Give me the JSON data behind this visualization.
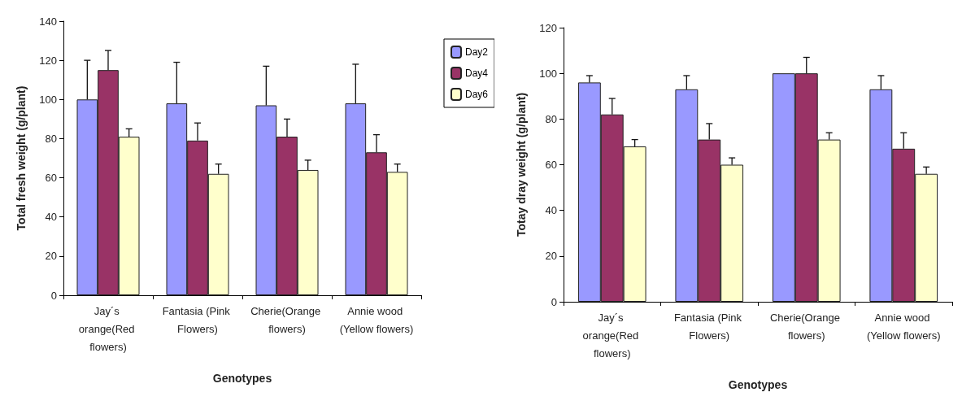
{
  "chart_data": [
    {
      "type": "bar",
      "xlabel": "Genotypes",
      "ylabel": "Total fresh weight (g/plant)",
      "categories": [
        "Jay´s orange(Red flowers)",
        "Fantasia (Pink Flowers)",
        "Cherie(Orange flowers)",
        "Annie wood (Yellow flowers)"
      ],
      "ylim": [
        0,
        140
      ],
      "yticks": [
        0,
        20,
        40,
        60,
        80,
        100,
        120,
        140
      ],
      "grid": false,
      "legend": "right",
      "series": [
        {
          "name": "Day2",
          "color": "#9999ff",
          "values": [
            100,
            98,
            97,
            98
          ],
          "errors": [
            [
              100,
              120
            ],
            [
              98,
              119
            ],
            [
              97,
              117
            ],
            [
              98,
              118
            ]
          ]
        },
        {
          "name": "Day4",
          "color": "#993366",
          "values": [
            115,
            79,
            81,
            73
          ],
          "errors": [
            [
              115,
              125
            ],
            [
              79,
              88
            ],
            [
              81,
              90
            ],
            [
              73,
              82
            ]
          ]
        },
        {
          "name": "Day6",
          "color": "#ffffcc",
          "values": [
            81,
            62,
            64,
            63
          ],
          "errors": [
            [
              81,
              85
            ],
            [
              62,
              67
            ],
            [
              64,
              69
            ],
            [
              63,
              67
            ]
          ]
        }
      ]
    },
    {
      "type": "bar",
      "xlabel": "Genotypes",
      "ylabel": "Totay dray weight (g/plant)",
      "categories": [
        "Jay´s orange(Red flowers)",
        "Fantasia (Pink Flowers)",
        "Cherie(Orange flowers)",
        "Annie wood (Yellow flowers)"
      ],
      "ylim": [
        0,
        120
      ],
      "yticks": [
        0,
        20,
        40,
        60,
        80,
        100,
        120
      ],
      "grid": false,
      "series": [
        {
          "color": "#9999ff",
          "values": [
            96,
            93,
            100,
            93
          ],
          "errors": [
            [
              96,
              99
            ],
            [
              93,
              99
            ],
            null,
            [
              93,
              99
            ]
          ]
        },
        {
          "color": "#993366",
          "values": [
            82,
            71,
            100,
            67
          ],
          "errors": [
            [
              82,
              89
            ],
            [
              71,
              78
            ],
            [
              100,
              107
            ],
            [
              67,
              74
            ]
          ]
        },
        {
          "color": "#ffffcc",
          "values": [
            68,
            60,
            71,
            56
          ],
          "errors": [
            [
              68,
              71
            ],
            [
              60,
              63
            ],
            [
              71,
              74
            ],
            [
              56,
              59
            ]
          ]
        }
      ]
    }
  ]
}
